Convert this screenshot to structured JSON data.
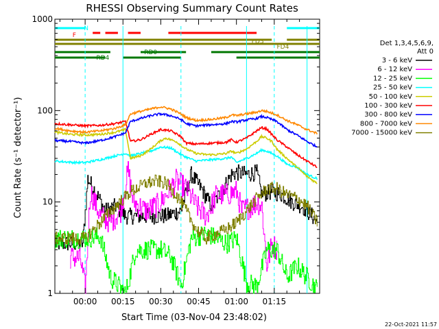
{
  "chart_data": {
    "type": "line",
    "title": "RHESSI Observing Summary Count Rates",
    "ylabel": "Count Rate (s⁻¹ detector⁻¹)",
    "xlabel": "Start Time (03-Nov-04 23:48:02)",
    "yscale": "log",
    "ylim": [
      1,
      1000
    ],
    "xlim_minutes": [
      -12,
      93
    ],
    "y_ticks": [
      "1",
      "10",
      "100",
      "1000"
    ],
    "x_ticks": [
      {
        "label": "00:00",
        "t": 0
      },
      {
        "label": "00:15",
        "t": 15
      },
      {
        "label": "00:30",
        "t": 30
      },
      {
        "label": "00:45",
        "t": 45
      },
      {
        "label": "01:00",
        "t": 60
      },
      {
        "label": "01:15",
        "t": 75
      }
    ],
    "legend_header": [
      "Det 1,3,4,5,6,9,",
      "Att 0"
    ],
    "legend_position": "right",
    "timestamp": "22-Oct-2021 11:57",
    "flag_bars": {
      "N": {
        "label": "N",
        "color": "#00ffff",
        "segments": [
          [
            -12,
            0
          ],
          [
            80,
            93
          ]
        ]
      },
      "F": {
        "label": "F",
        "color": "#ff0000",
        "segments": [
          [
            3,
            6
          ],
          [
            8,
            13
          ],
          [
            17,
            22
          ],
          [
            33,
            68
          ]
        ]
      },
      "FD3": {
        "label": "FD3",
        "color": "#808000",
        "segments": [
          [
            -12,
            93
          ]
        ]
      },
      "FD4": {
        "label": "FD4",
        "color": "#808000",
        "segments": [
          [
            -12,
            74
          ],
          [
            80,
            93
          ]
        ]
      },
      "RD0": {
        "label": "RD0",
        "color": "#007700",
        "segments": [
          [
            -12,
            10
          ],
          [
            22,
            40
          ],
          [
            50,
            93
          ]
        ]
      },
      "RD4": {
        "label": "RD4",
        "color": "#007700",
        "segments": [
          [
            -12,
            8
          ],
          [
            15,
            38
          ],
          [
            60,
            93
          ]
        ]
      }
    },
    "series": [
      {
        "name": "3 - 6 keV",
        "color": "#000000",
        "points": [
          [
            -12,
            3.5
          ],
          [
            -1,
            3.5
          ],
          [
            1,
            18
          ],
          [
            4,
            13
          ],
          [
            8,
            8
          ],
          [
            12,
            9
          ],
          [
            16,
            7
          ],
          [
            24,
            7
          ],
          [
            32,
            7
          ],
          [
            38,
            8
          ],
          [
            42,
            20
          ],
          [
            46,
            14
          ],
          [
            50,
            9
          ],
          [
            54,
            13
          ],
          [
            58,
            20
          ],
          [
            60,
            21
          ],
          [
            64,
            20
          ],
          [
            68,
            21
          ],
          [
            70,
            12
          ],
          [
            74,
            13
          ],
          [
            78,
            12
          ],
          [
            82,
            10
          ],
          [
            86,
            9
          ],
          [
            90,
            7
          ],
          [
            92,
            6
          ]
        ]
      },
      {
        "name": "6 - 12 keV",
        "color": "#ff00ff",
        "points": [
          [
            -6,
            2.5
          ],
          [
            -2,
            2.4
          ],
          [
            0,
            1.1
          ],
          [
            2,
            13
          ],
          [
            6,
            7
          ],
          [
            10,
            6
          ],
          [
            14,
            8
          ],
          [
            17,
            22
          ],
          [
            19,
            10
          ],
          [
            24,
            8
          ],
          [
            28,
            9
          ],
          [
            30,
            10
          ],
          [
            33,
            13
          ],
          [
            36,
            17
          ],
          [
            40,
            14
          ],
          [
            44,
            9
          ],
          [
            48,
            7
          ],
          [
            52,
            12
          ],
          [
            56,
            12
          ],
          [
            60,
            13
          ],
          [
            62,
            8
          ],
          [
            66,
            9
          ],
          [
            68,
            10
          ],
          [
            70,
            9
          ],
          [
            72,
            2
          ],
          [
            74,
            3.5
          ],
          [
            76,
            3
          ]
        ]
      },
      {
        "name": "12 - 25 keV",
        "color": "#00ff00",
        "points": [
          [
            -12,
            4
          ],
          [
            -4,
            4
          ],
          [
            0,
            4
          ],
          [
            6,
            4.2
          ],
          [
            10,
            1.5
          ],
          [
            16,
            1
          ],
          [
            20,
            3
          ],
          [
            26,
            3
          ],
          [
            30,
            3
          ],
          [
            34,
            2.5
          ],
          [
            38,
            1.2
          ],
          [
            42,
            4
          ],
          [
            48,
            4.5
          ],
          [
            52,
            4
          ],
          [
            56,
            3.5
          ],
          [
            60,
            4
          ],
          [
            64,
            1.3
          ],
          [
            68,
            1.2
          ],
          [
            72,
            3
          ],
          [
            76,
            3
          ],
          [
            80,
            1.5
          ],
          [
            84,
            2
          ],
          [
            88,
            1.5
          ],
          [
            92,
            1.1
          ]
        ]
      },
      {
        "name": "25 - 50 keV",
        "color": "#00ffff",
        "points": [
          [
            -12,
            28
          ],
          [
            -4,
            27
          ],
          [
            0,
            27
          ],
          [
            6,
            29
          ],
          [
            12,
            32
          ],
          [
            16,
            34
          ],
          [
            18,
            32
          ],
          [
            22,
            34
          ],
          [
            26,
            36
          ],
          [
            30,
            40
          ],
          [
            34,
            39
          ],
          [
            38,
            33
          ],
          [
            40,
            31
          ],
          [
            44,
            28
          ],
          [
            50,
            29
          ],
          [
            56,
            30
          ],
          [
            58,
            31
          ],
          [
            60,
            27
          ],
          [
            64,
            30
          ],
          [
            68,
            34
          ],
          [
            70,
            37
          ],
          [
            72,
            36
          ],
          [
            76,
            32
          ],
          [
            80,
            26
          ],
          [
            84,
            24
          ],
          [
            88,
            20
          ],
          [
            92,
            18
          ]
        ]
      },
      {
        "name": "50 - 100 keV",
        "color": "#cccc00",
        "points": [
          [
            -12,
            58
          ],
          [
            -6,
            55
          ],
          [
            0,
            54
          ],
          [
            6,
            55
          ],
          [
            12,
            58
          ],
          [
            16,
            62
          ],
          [
            18,
            30
          ],
          [
            22,
            32
          ],
          [
            26,
            38
          ],
          [
            30,
            47
          ],
          [
            32,
            50
          ],
          [
            36,
            46
          ],
          [
            40,
            38
          ],
          [
            44,
            34
          ],
          [
            48,
            33
          ],
          [
            52,
            33
          ],
          [
            56,
            34
          ],
          [
            58,
            36
          ],
          [
            60,
            34
          ],
          [
            64,
            38
          ],
          [
            68,
            46
          ],
          [
            70,
            52
          ],
          [
            72,
            50
          ],
          [
            74,
            46
          ],
          [
            76,
            38
          ],
          [
            80,
            30
          ],
          [
            84,
            24
          ],
          [
            88,
            19
          ],
          [
            92,
            16
          ]
        ]
      },
      {
        "name": "100 - 300 keV",
        "color": "#ff0000",
        "points": [
          [
            -12,
            72
          ],
          [
            -6,
            70
          ],
          [
            0,
            68
          ],
          [
            6,
            69
          ],
          [
            12,
            72
          ],
          [
            16,
            76
          ],
          [
            18,
            46
          ],
          [
            22,
            48
          ],
          [
            26,
            55
          ],
          [
            30,
            62
          ],
          [
            34,
            60
          ],
          [
            38,
            52
          ],
          [
            40,
            44
          ],
          [
            44,
            43
          ],
          [
            50,
            44
          ],
          [
            56,
            45
          ],
          [
            58,
            48
          ],
          [
            60,
            45
          ],
          [
            64,
            50
          ],
          [
            68,
            60
          ],
          [
            70,
            65
          ],
          [
            72,
            63
          ],
          [
            76,
            48
          ],
          [
            80,
            40
          ],
          [
            84,
            33
          ],
          [
            88,
            28
          ],
          [
            92,
            24
          ]
        ]
      },
      {
        "name": "300 - 800 keV",
        "color": "#0000ff",
        "points": [
          [
            -12,
            47
          ],
          [
            -6,
            46
          ],
          [
            0,
            44
          ],
          [
            6,
            47
          ],
          [
            12,
            52
          ],
          [
            16,
            57
          ],
          [
            18,
            76
          ],
          [
            22,
            82
          ],
          [
            26,
            88
          ],
          [
            30,
            92
          ],
          [
            34,
            88
          ],
          [
            38,
            80
          ],
          [
            40,
            72
          ],
          [
            44,
            68
          ],
          [
            50,
            70
          ],
          [
            56,
            72
          ],
          [
            58,
            76
          ],
          [
            60,
            75
          ],
          [
            64,
            79
          ],
          [
            68,
            82
          ],
          [
            70,
            86
          ],
          [
            72,
            84
          ],
          [
            76,
            76
          ],
          [
            80,
            62
          ],
          [
            84,
            54
          ],
          [
            88,
            46
          ],
          [
            92,
            40
          ]
        ]
      },
      {
        "name": "800 - 7000 keV",
        "color": "#ff8800",
        "points": [
          [
            -12,
            64
          ],
          [
            -6,
            60
          ],
          [
            0,
            58
          ],
          [
            6,
            60
          ],
          [
            12,
            64
          ],
          [
            16,
            70
          ],
          [
            18,
            92
          ],
          [
            22,
            98
          ],
          [
            26,
            104
          ],
          [
            30,
            110
          ],
          [
            34,
            104
          ],
          [
            38,
            92
          ],
          [
            40,
            84
          ],
          [
            44,
            78
          ],
          [
            50,
            80
          ],
          [
            56,
            84
          ],
          [
            58,
            90
          ],
          [
            60,
            88
          ],
          [
            64,
            92
          ],
          [
            68,
            96
          ],
          [
            70,
            100
          ],
          [
            72,
            98
          ],
          [
            76,
            90
          ],
          [
            80,
            78
          ],
          [
            84,
            70
          ],
          [
            88,
            62
          ],
          [
            92,
            56
          ]
        ]
      },
      {
        "name": "7000 - 15000 keV",
        "color": "#808000",
        "points": [
          [
            -12,
            4
          ],
          [
            -4,
            4
          ],
          [
            0,
            4
          ],
          [
            6,
            6
          ],
          [
            12,
            9
          ],
          [
            18,
            13
          ],
          [
            24,
            16
          ],
          [
            28,
            17
          ],
          [
            32,
            16
          ],
          [
            36,
            12
          ],
          [
            40,
            8
          ],
          [
            44,
            5
          ],
          [
            48,
            4
          ],
          [
            52,
            4.5
          ],
          [
            56,
            5
          ],
          [
            60,
            6
          ],
          [
            64,
            8
          ],
          [
            68,
            11
          ],
          [
            72,
            14
          ],
          [
            76,
            14
          ],
          [
            80,
            12
          ],
          [
            84,
            11
          ],
          [
            88,
            9
          ],
          [
            92,
            6
          ]
        ]
      }
    ]
  }
}
